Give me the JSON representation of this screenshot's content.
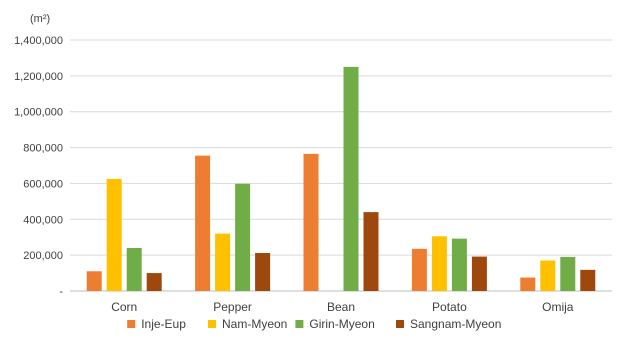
{
  "chart_data": {
    "type": "bar",
    "unit_label": "(m²)",
    "categories": [
      "Corn",
      "Pepper",
      "Bean",
      "Potato",
      "Omija"
    ],
    "ylim": [
      0,
      1400000
    ],
    "yticks": [
      0,
      200000,
      400000,
      600000,
      800000,
      1000000,
      1200000,
      1400000
    ],
    "ytick_labels": [
      "-",
      "200,000",
      "400,000",
      "600,000",
      "800,000",
      "1,000,000",
      "1,200,000",
      "1,400,000"
    ],
    "grid": true,
    "legend_position": "bottom",
    "series": [
      {
        "name": "Inje-Eup",
        "color": "#ED7D31",
        "values": [
          110000,
          755000,
          765000,
          235000,
          75000
        ]
      },
      {
        "name": "Nam-Myeon",
        "color": "#FFC000",
        "values": [
          625000,
          320000,
          0,
          305000,
          170000
        ]
      },
      {
        "name": "Girin-Myeon",
        "color": "#70AD47",
        "values": [
          240000,
          598000,
          1250000,
          292000,
          190000
        ]
      },
      {
        "name": "Sangnam-Myeon",
        "color": "#9E480E",
        "values": [
          100000,
          212000,
          440000,
          192000,
          118000
        ]
      }
    ]
  }
}
